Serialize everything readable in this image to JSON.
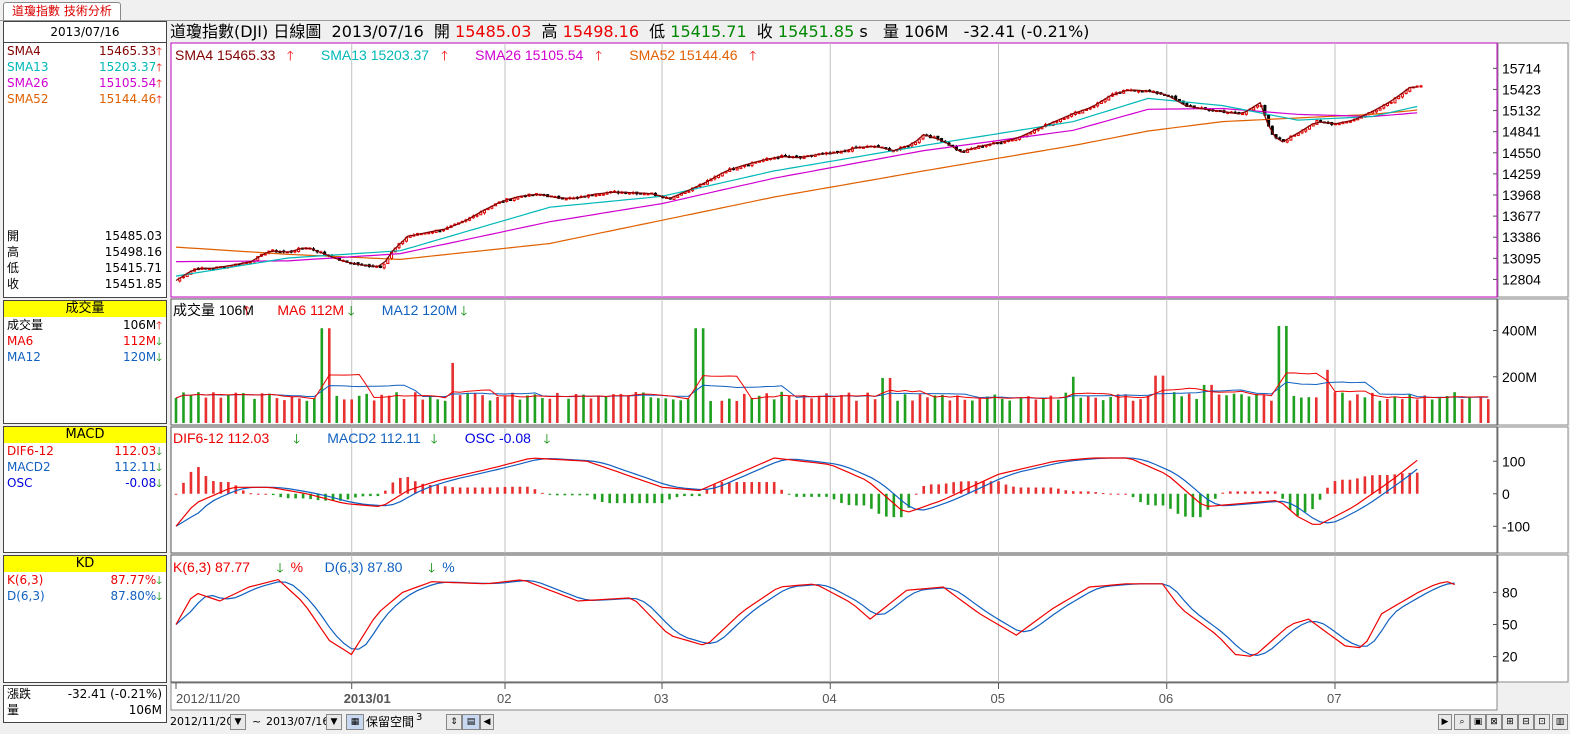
{
  "tab": {
    "label": "道瓊指數 技術分析"
  },
  "header": {
    "name": "道瓊指數(DJI)",
    "period": "日線圖",
    "date": "2013/07/16",
    "open_label": "開",
    "open": "15485.03",
    "high_label": "高",
    "high": "15498.16",
    "low_label": "低",
    "low": "15415.71",
    "close_label": "收",
    "close": "15451.85",
    "close_suffix": "s",
    "vol_label": "量",
    "vol": "106M",
    "change": "-32.41 (-0.21%)"
  },
  "sidebar": {
    "date": "2013/07/16",
    "sma": [
      {
        "label": "SMA4",
        "value": "15465.33",
        "color": "#800000",
        "dir": "up"
      },
      {
        "label": "SMA13",
        "value": "15203.37",
        "color": "#00b8b8",
        "dir": "up"
      },
      {
        "label": "SMA26",
        "value": "15105.54",
        "color": "#d000d0",
        "dir": "up"
      },
      {
        "label": "SMA52",
        "value": "15144.46",
        "color": "#e06000",
        "dir": "up"
      }
    ],
    "ohlc": [
      {
        "label": "開",
        "value": "15485.03"
      },
      {
        "label": "高",
        "value": "15498.16"
      },
      {
        "label": "低",
        "value": "15415.71"
      },
      {
        "label": "收",
        "value": "15451.85"
      }
    ],
    "volume": {
      "title": "成交量",
      "rows": [
        {
          "label": "成交量",
          "value": "106M",
          "color": "#000",
          "dir": "up"
        },
        {
          "label": "MA6",
          "value": "112M",
          "color": "#e00",
          "dir": "dn"
        },
        {
          "label": "MA12",
          "value": "120M",
          "color": "#1060c0",
          "dir": "dn"
        }
      ]
    },
    "macd": {
      "title": "MACD",
      "rows": [
        {
          "label": "DIF6-12",
          "value": "112.03",
          "color": "#e00",
          "dir": "dn"
        },
        {
          "label": "MACD2",
          "value": "112.11",
          "color": "#1060c0",
          "dir": "dn"
        },
        {
          "label": "OSC",
          "value": "-0.08",
          "color": "#0000e0",
          "dir": "dn"
        }
      ]
    },
    "kd": {
      "title": "KD",
      "rows": [
        {
          "label": "K(6,3)",
          "value": "87.77%",
          "color": "#e00",
          "dir": "dn"
        },
        {
          "label": "D(6,3)",
          "value": "87.80%",
          "color": "#1060c0",
          "dir": "dn"
        }
      ]
    },
    "change": {
      "label": "漲跌",
      "value": "-32.41 (-0.21%)"
    },
    "vol": {
      "label": "量",
      "value": "106M"
    }
  },
  "legends": {
    "price": [
      {
        "text": "SMA4 15465.33",
        "color": "#800000"
      },
      {
        "text": "SMA13 15203.37",
        "color": "#00b8b8"
      },
      {
        "text": "SMA26 15105.54",
        "color": "#d000d0"
      },
      {
        "text": "SMA52 15144.46",
        "color": "#e06000"
      }
    ],
    "volume": [
      {
        "text": "成交量 106M",
        "color": "#000",
        "dir": "up"
      },
      {
        "text": "MA6 112M",
        "color": "#e00",
        "dir": "dn"
      },
      {
        "text": "MA12 120M",
        "color": "#1060c0",
        "dir": "dn"
      }
    ],
    "macd": [
      {
        "text": "DIF6-12 112.03",
        "color": "#e00",
        "dir": "dn"
      },
      {
        "text": "MACD2 112.11",
        "color": "#1060c0",
        "dir": "dn"
      },
      {
        "text": "OSC -0.08",
        "color": "#0000e0",
        "dir": "dn"
      }
    ],
    "kd": [
      {
        "text": "K(6,3) 87.77",
        "color": "#e00",
        "dir": "dn",
        "suffix": "%"
      },
      {
        "text": "D(6,3) 87.80",
        "color": "#1060c0",
        "dir": "dn",
        "suffix": "%"
      }
    ]
  },
  "bottom": {
    "start": "2012/11/20",
    "tilde": "~",
    "end": "2013/07/16",
    "reserve": "保留空間",
    "reserve_n": "3"
  },
  "colors": {
    "up": "#e00000",
    "down": "#000000",
    "vol_up": "#e83030",
    "vol_down": "#20a020",
    "panel_border": "#c000c0"
  },
  "chart_data": [
    {
      "type": "candlestick",
      "title": "道瓊指數(DJI) 日線圖",
      "x_tick_labels": [
        "2012/11/20",
        "2013/01",
        "02",
        "03",
        "04",
        "05",
        "06",
        "07"
      ],
      "y_ticks": [
        12804,
        13095,
        13386,
        13677,
        13968,
        14259,
        14550,
        14841,
        15132,
        15423,
        15714
      ],
      "ylim": [
        12700,
        15760
      ],
      "close_path": [
        [
          0,
          12790
        ],
        [
          5,
          12950
        ],
        [
          10,
          12960
        ],
        [
          15,
          13000
        ],
        [
          20,
          13050
        ],
        [
          25,
          13200
        ],
        [
          30,
          13180
        ],
        [
          35,
          13250
        ],
        [
          40,
          13150
        ],
        [
          45,
          13050
        ],
        [
          50,
          13000
        ],
        [
          55,
          12980
        ],
        [
          58,
          13200
        ],
        [
          62,
          13400
        ],
        [
          67,
          13450
        ],
        [
          72,
          13500
        ],
        [
          77,
          13600
        ],
        [
          82,
          13750
        ],
        [
          87,
          13880
        ],
        [
          92,
          13950
        ],
        [
          97,
          13980
        ],
        [
          102,
          13930
        ],
        [
          107,
          13920
        ],
        [
          112,
          13980
        ],
        [
          117,
          14010
        ],
        [
          122,
          14000
        ],
        [
          127,
          13990
        ],
        [
          132,
          13920
        ],
        [
          137,
          14030
        ],
        [
          142,
          14150
        ],
        [
          147,
          14300
        ],
        [
          152,
          14380
        ],
        [
          157,
          14450
        ],
        [
          162,
          14500
        ],
        [
          167,
          14480
        ],
        [
          172,
          14530
        ],
        [
          177,
          14550
        ],
        [
          182,
          14620
        ],
        [
          187,
          14640
        ],
        [
          192,
          14580
        ],
        [
          197,
          14670
        ],
        [
          200,
          14800
        ],
        [
          205,
          14720
        ],
        [
          210,
          14560
        ],
        [
          215,
          14640
        ],
        [
          220,
          14690
        ],
        [
          225,
          14750
        ],
        [
          230,
          14870
        ],
        [
          235,
          14980
        ],
        [
          240,
          15090
        ],
        [
          245,
          15180
        ],
        [
          250,
          15340
        ],
        [
          255,
          15420
        ],
        [
          260,
          15400
        ],
        [
          265,
          15350
        ],
        [
          270,
          15200
        ],
        [
          275,
          15150
        ],
        [
          280,
          15120
        ],
        [
          285,
          15080
        ],
        [
          290,
          15240
        ],
        [
          293,
          14800
        ],
        [
          296,
          14700
        ],
        [
          300,
          14820
        ],
        [
          305,
          14980
        ],
        [
          310,
          14950
        ],
        [
          315,
          15000
        ],
        [
          320,
          15120
        ],
        [
          325,
          15260
        ],
        [
          330,
          15450
        ],
        [
          333,
          15460
        ]
      ],
      "sma4": "follows close",
      "sma13": [
        [
          0,
          12850
        ],
        [
          30,
          13100
        ],
        [
          60,
          13200
        ],
        [
          100,
          13800
        ],
        [
          130,
          13950
        ],
        [
          160,
          14300
        ],
        [
          200,
          14650
        ],
        [
          240,
          14980
        ],
        [
          260,
          15300
        ],
        [
          280,
          15200
        ],
        [
          300,
          15000
        ],
        [
          320,
          15050
        ],
        [
          333,
          15200
        ]
      ],
      "sma26": [
        [
          0,
          13050
        ],
        [
          30,
          13060
        ],
        [
          60,
          13160
        ],
        [
          100,
          13600
        ],
        [
          130,
          13850
        ],
        [
          160,
          14200
        ],
        [
          200,
          14580
        ],
        [
          240,
          14860
        ],
        [
          260,
          15150
        ],
        [
          280,
          15160
        ],
        [
          300,
          15080
        ],
        [
          320,
          15050
        ],
        [
          333,
          15105
        ]
      ],
      "sma52": [
        [
          0,
          13250
        ],
        [
          30,
          13150
        ],
        [
          60,
          13080
        ],
        [
          100,
          13300
        ],
        [
          130,
          13620
        ],
        [
          160,
          13940
        ],
        [
          200,
          14300
        ],
        [
          240,
          14650
        ],
        [
          260,
          14850
        ],
        [
          280,
          14980
        ],
        [
          300,
          15030
        ],
        [
          320,
          15080
        ],
        [
          333,
          15144
        ]
      ]
    },
    {
      "type": "bar",
      "title": "成交量",
      "y_ticks": [
        200,
        400
      ],
      "ylim": [
        0,
        450
      ],
      "unit": "M",
      "typical_volume": 115,
      "spikes": [
        [
          40,
          410
        ],
        [
          74,
          260
        ],
        [
          140,
          410
        ],
        [
          190,
          195
        ],
        [
          240,
          200
        ],
        [
          263,
          205
        ],
        [
          276,
          165
        ],
        [
          296,
          420
        ],
        [
          307,
          230
        ]
      ],
      "last": 106,
      "ma6": 112,
      "ma12": 120
    },
    {
      "type": "bar",
      "title": "MACD",
      "y_ticks": [
        -100,
        0,
        100
      ],
      "ylim": [
        -170,
        150
      ],
      "dif_path": [
        [
          0,
          -100
        ],
        [
          5,
          -30
        ],
        [
          15,
          20
        ],
        [
          25,
          20
        ],
        [
          35,
          0
        ],
        [
          45,
          -30
        ],
        [
          55,
          -40
        ],
        [
          62,
          10
        ],
        [
          70,
          40
        ],
        [
          85,
          80
        ],
        [
          95,
          110
        ],
        [
          110,
          100
        ],
        [
          120,
          60
        ],
        [
          130,
          20
        ],
        [
          140,
          10
        ],
        [
          150,
          60
        ],
        [
          160,
          110
        ],
        [
          175,
          90
        ],
        [
          185,
          40
        ],
        [
          195,
          -60
        ],
        [
          205,
          -20
        ],
        [
          220,
          60
        ],
        [
          235,
          100
        ],
        [
          245,
          110
        ],
        [
          255,
          110
        ],
        [
          265,
          60
        ],
        [
          275,
          -40
        ],
        [
          285,
          -30
        ],
        [
          295,
          -20
        ],
        [
          300,
          -70
        ],
        [
          305,
          -100
        ],
        [
          315,
          -40
        ],
        [
          325,
          40
        ],
        [
          333,
          112
        ]
      ],
      "last": {
        "dif": 112.03,
        "macd2": 112.11,
        "osc": -0.08
      }
    },
    {
      "type": "line",
      "title": "KD",
      "y_ticks": [
        20,
        50,
        80
      ],
      "ylim": [
        0,
        100
      ],
      "k_path": [
        [
          0,
          50
        ],
        [
          5,
          80
        ],
        [
          12,
          72
        ],
        [
          20,
          85
        ],
        [
          28,
          92
        ],
        [
          35,
          70
        ],
        [
          42,
          35
        ],
        [
          48,
          22
        ],
        [
          55,
          60
        ],
        [
          62,
          80
        ],
        [
          70,
          90
        ],
        [
          85,
          88
        ],
        [
          95,
          92
        ],
        [
          100,
          85
        ],
        [
          110,
          72
        ],
        [
          125,
          75
        ],
        [
          135,
          40
        ],
        [
          145,
          30
        ],
        [
          155,
          62
        ],
        [
          165,
          85
        ],
        [
          175,
          88
        ],
        [
          185,
          70
        ],
        [
          190,
          55
        ],
        [
          200,
          82
        ],
        [
          210,
          85
        ],
        [
          220,
          60
        ],
        [
          230,
          40
        ],
        [
          240,
          65
        ],
        [
          250,
          85
        ],
        [
          260,
          88
        ],
        [
          270,
          88
        ],
        [
          275,
          65
        ],
        [
          285,
          40
        ],
        [
          290,
          22
        ],
        [
          295,
          20
        ],
        [
          305,
          50
        ],
        [
          310,
          55
        ],
        [
          320,
          30
        ],
        [
          325,
          28
        ],
        [
          330,
          60
        ],
        [
          340,
          80
        ],
        [
          345,
          88
        ],
        [
          348,
          90
        ],
        [
          351,
          86
        ]
      ],
      "last": {
        "k": 87.77,
        "d": 87.8
      }
    }
  ]
}
